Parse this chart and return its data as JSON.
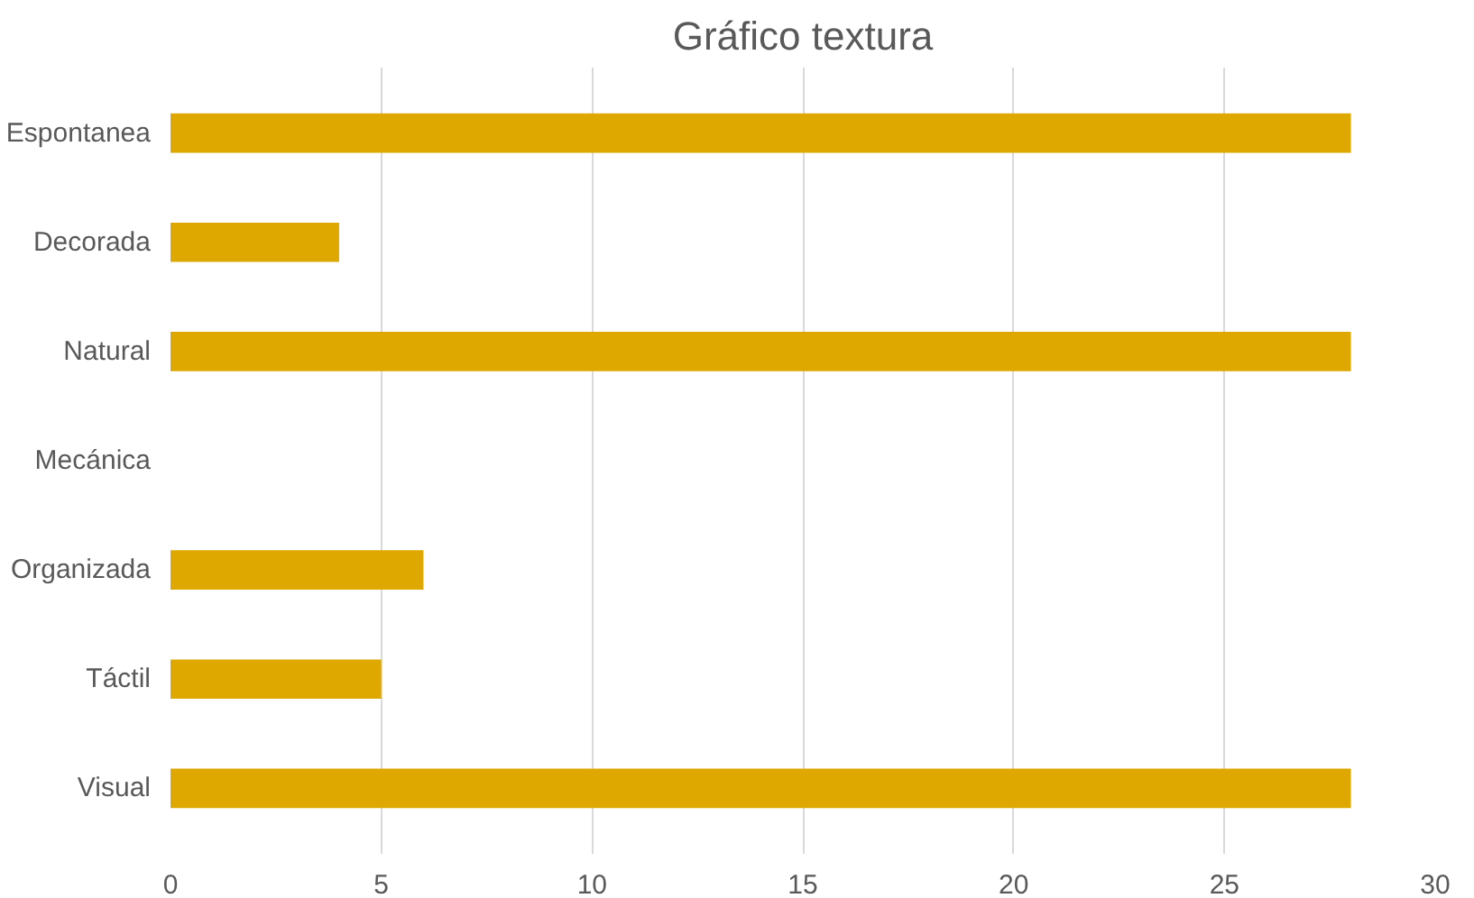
{
  "chart_data": {
    "type": "bar",
    "orientation": "horizontal",
    "title": "Gráfico textura",
    "categories": [
      "Espontanea",
      "Decorada",
      "Natural",
      "Mecánica",
      "Organizada",
      "Táctil",
      "Visual"
    ],
    "values": [
      28,
      4,
      28,
      0,
      6,
      5,
      28
    ],
    "color": "#dfa800",
    "xlim": [
      0,
      30
    ],
    "xticks": [
      0,
      5,
      10,
      15,
      20,
      25,
      30
    ],
    "grid": "x"
  }
}
